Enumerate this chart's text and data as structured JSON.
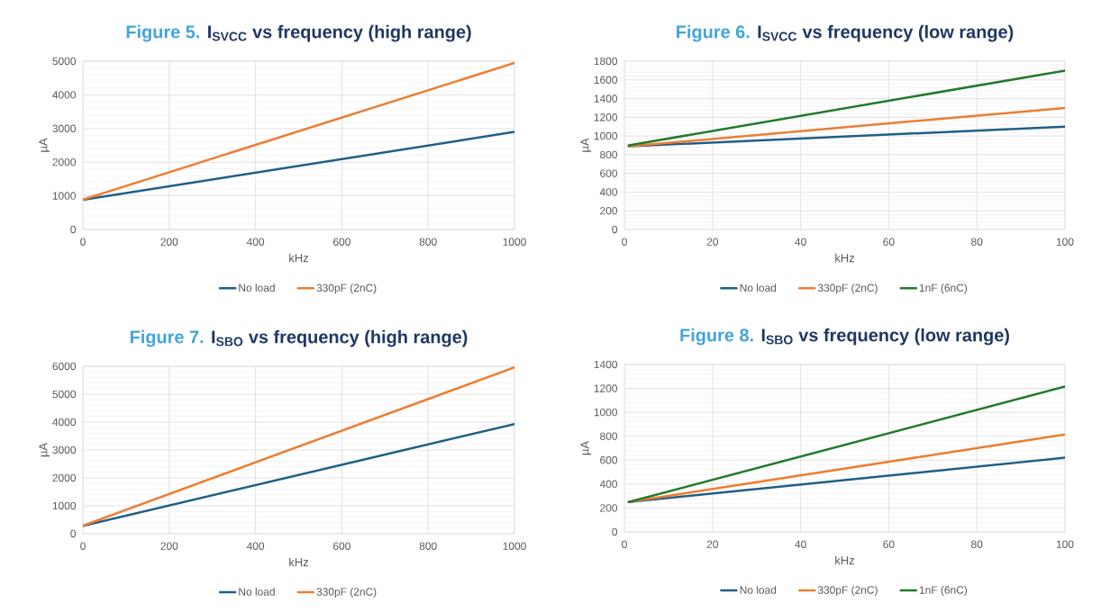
{
  "chart_data": [
    {
      "type": "line",
      "title": "Figure 5.",
      "subtitle": "I$_{SVCC}$ vs frequency (high range)",
      "xlabel": "kHz",
      "ylabel": "µA",
      "xlim": [
        0,
        1000
      ],
      "ylim": [
        0,
        5000
      ],
      "xticks": [
        0,
        200,
        400,
        600,
        800,
        1000
      ],
      "yticks": [
        0,
        1000,
        2000,
        3000,
        4000,
        5000
      ],
      "grid": true,
      "legend": "bottom",
      "series": [
        {
          "name": "No load",
          "color": "#1f5f86",
          "x": [
            0,
            1000
          ],
          "values": [
            880,
            2900
          ]
        },
        {
          "name": "330pF (2nC)",
          "color": "#ed7d31",
          "x": [
            0,
            1000
          ],
          "values": [
            890,
            4950
          ]
        }
      ]
    },
    {
      "type": "line",
      "title": "Figure 6.",
      "subtitle": "I$_{SVCC}$ vs frequency (low range)",
      "xlabel": "kHz",
      "ylabel": "µA",
      "xlim": [
        0,
        100
      ],
      "ylim": [
        0,
        1800
      ],
      "xticks": [
        0,
        20,
        40,
        60,
        80,
        100
      ],
      "yticks": [
        0,
        200,
        400,
        600,
        800,
        1000,
        1200,
        1400,
        1600,
        1800
      ],
      "grid": true,
      "legend": "bottom",
      "series": [
        {
          "name": "No load",
          "color": "#1f5f86",
          "x": [
            1,
            100
          ],
          "values": [
            890,
            1100
          ]
        },
        {
          "name": "330pF (2nC)",
          "color": "#ed7d31",
          "x": [
            1,
            100
          ],
          "values": [
            890,
            1300
          ]
        },
        {
          "name": "1nF (6nC)",
          "color": "#217a2a",
          "x": [
            1,
            100
          ],
          "values": [
            900,
            1700
          ]
        }
      ]
    },
    {
      "type": "line",
      "title": "Figure 7.",
      "subtitle": "I$_{SBO}$ vs frequency (high range)",
      "xlabel": "kHz",
      "ylabel": "µA",
      "xlim": [
        0,
        1000
      ],
      "ylim": [
        0,
        6000
      ],
      "xticks": [
        0,
        200,
        400,
        600,
        800,
        1000
      ],
      "yticks": [
        0,
        1000,
        2000,
        3000,
        4000,
        5000,
        6000
      ],
      "grid": true,
      "legend": "bottom",
      "series": [
        {
          "name": "No load",
          "color": "#1f5f86",
          "x": [
            0,
            1000
          ],
          "values": [
            280,
            3930
          ]
        },
        {
          "name": "330pF (2nC)",
          "color": "#ed7d31",
          "x": [
            0,
            1000
          ],
          "values": [
            290,
            5960
          ]
        }
      ]
    },
    {
      "type": "line",
      "title": "Figure 8.",
      "subtitle": "I$_{SBO}$ vs frequency (low range)",
      "xlabel": "kHz",
      "ylabel": "µA",
      "xlim": [
        0,
        100
      ],
      "ylim": [
        0,
        1400
      ],
      "xticks": [
        0,
        20,
        40,
        60,
        80,
        100
      ],
      "yticks": [
        0,
        200,
        400,
        600,
        800,
        1000,
        1200,
        1400
      ],
      "grid": true,
      "legend": "bottom",
      "series": [
        {
          "name": "No load",
          "color": "#1f5f86",
          "x": [
            1,
            100
          ],
          "values": [
            250,
            620
          ]
        },
        {
          "name": "330pF (2nC)",
          "color": "#ed7d31",
          "x": [
            1,
            100
          ],
          "values": [
            250,
            815
          ]
        },
        {
          "name": "1nF (6nC)",
          "color": "#217a2a",
          "x": [
            1,
            100
          ],
          "values": [
            250,
            1215
          ]
        }
      ]
    }
  ]
}
